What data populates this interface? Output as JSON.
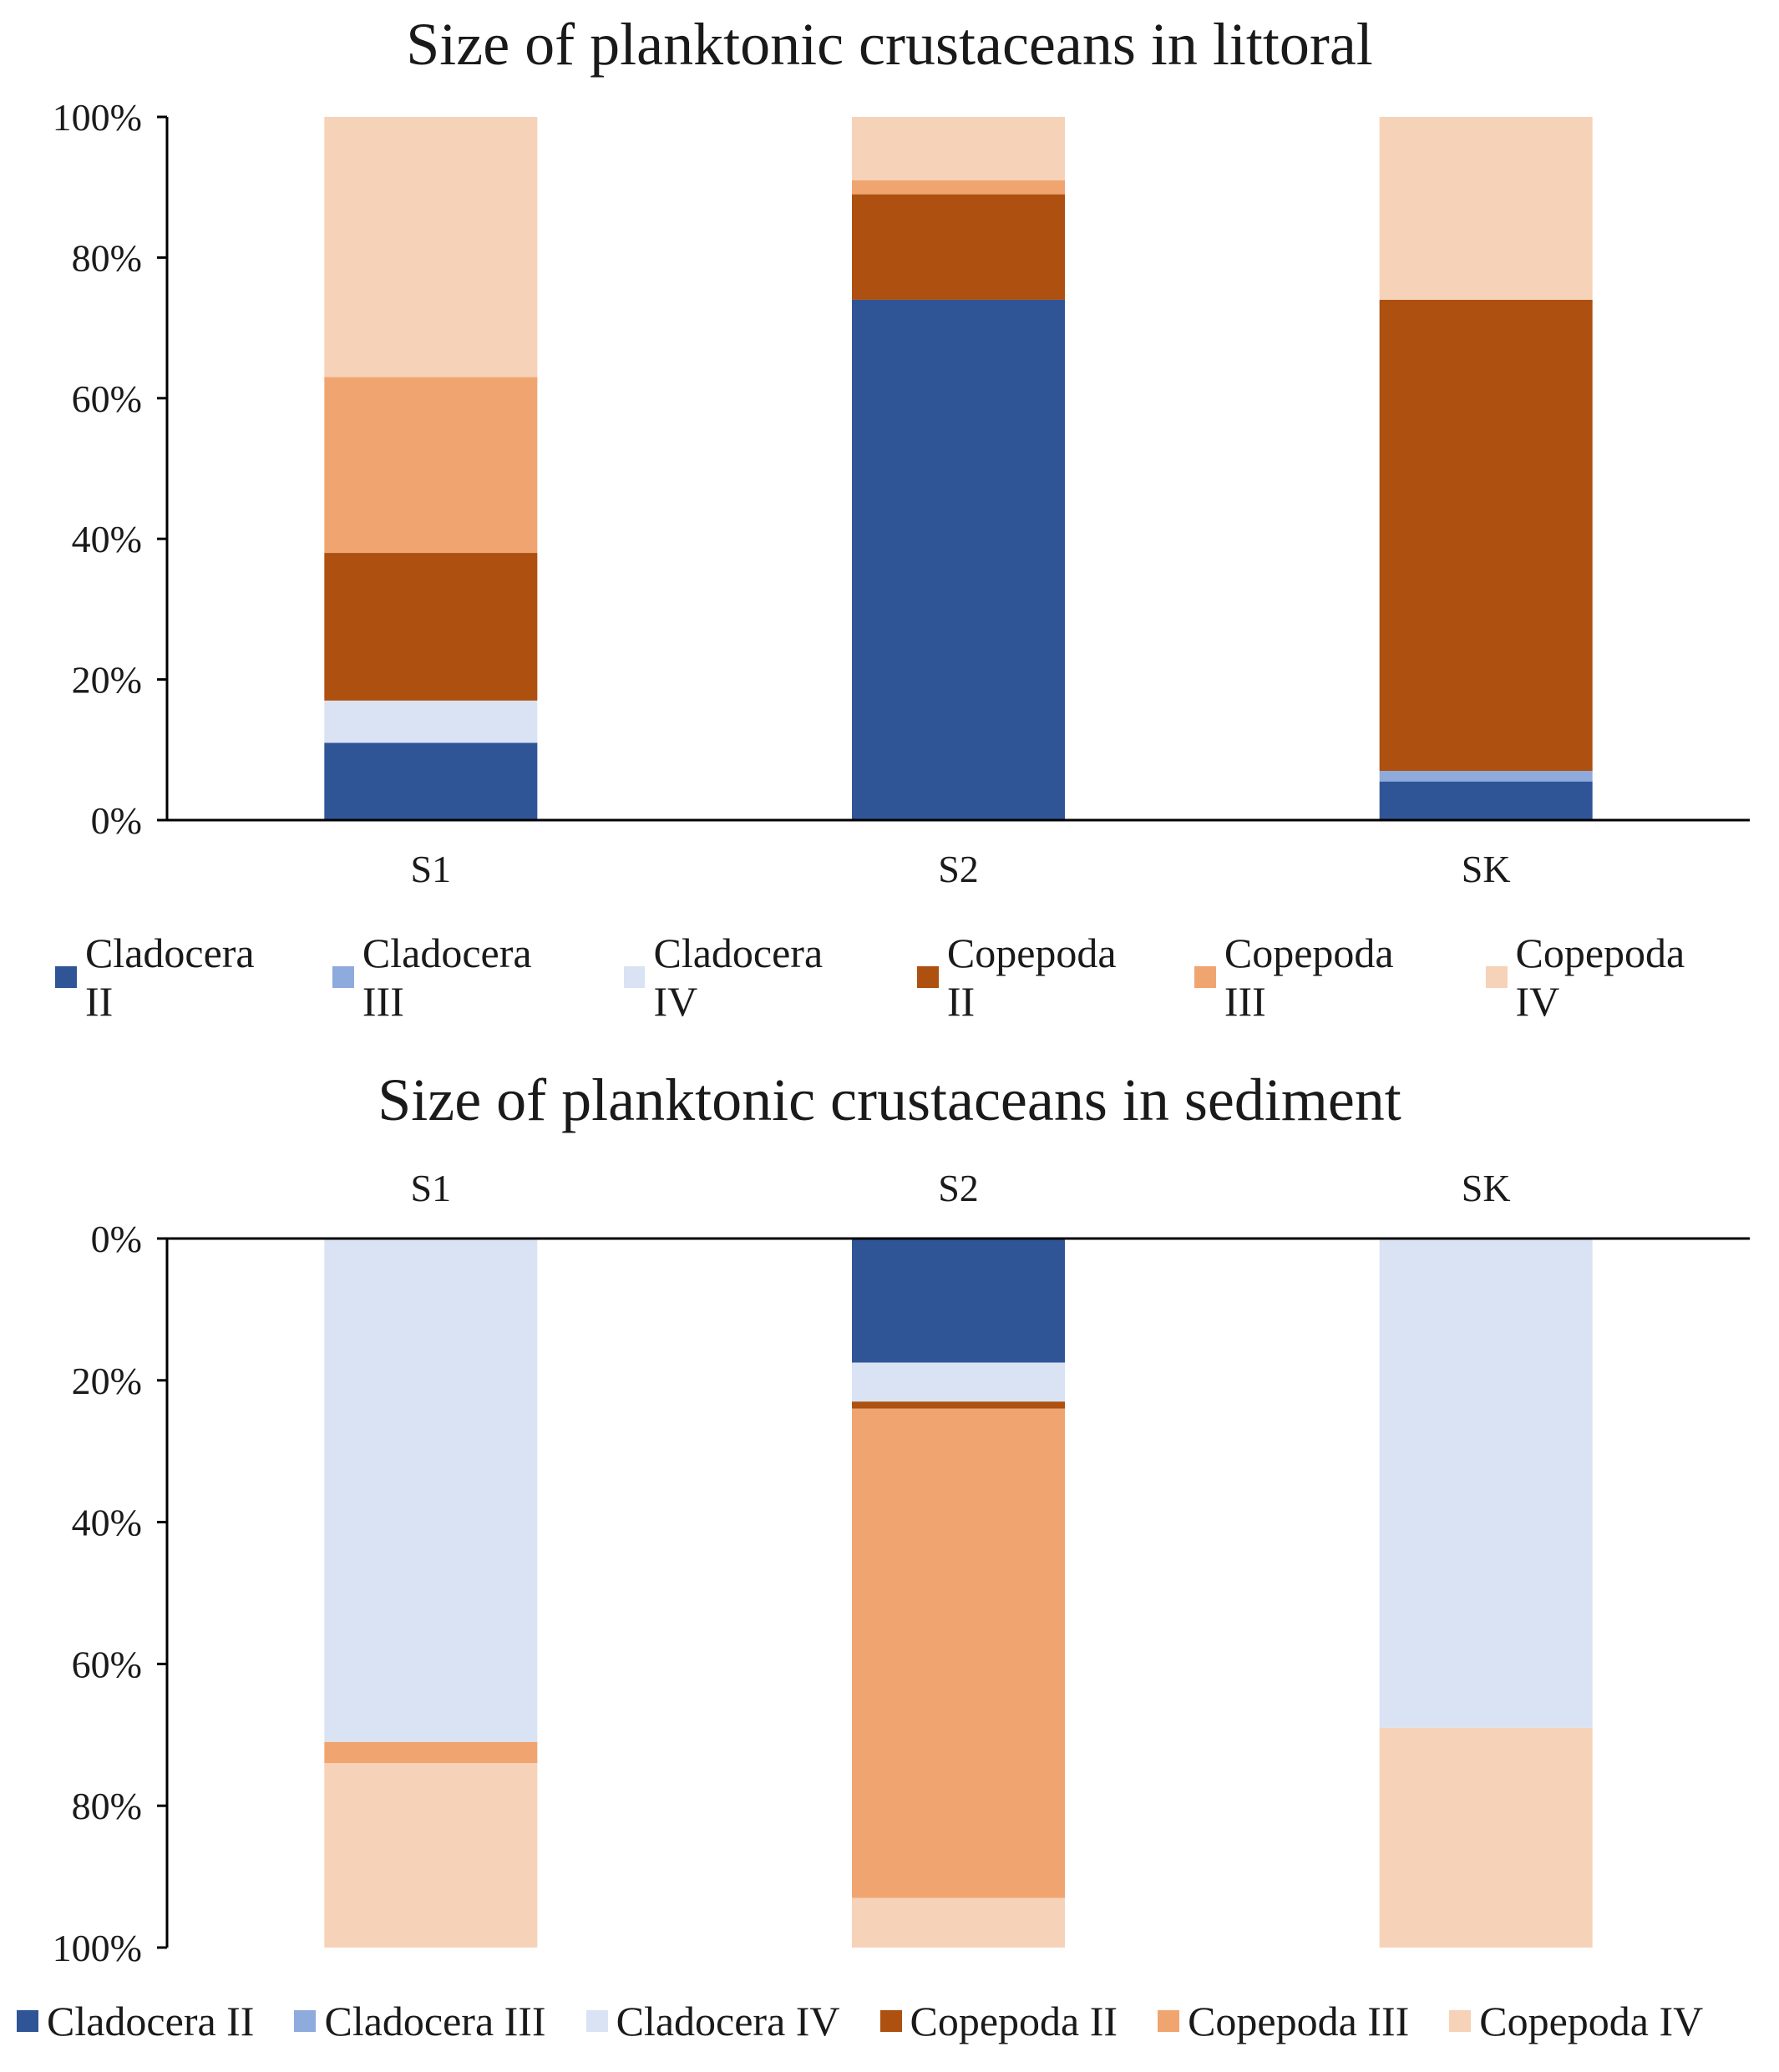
{
  "chart_data": [
    {
      "type": "bar",
      "stacked": true,
      "normalized": true,
      "orientation": "vertical",
      "direction": "up",
      "title": "Size of planktonic crustaceans in littoral",
      "xlabel": "",
      "ylabel": "",
      "ylim": [
        0,
        100
      ],
      "yticks": [
        "0%",
        "20%",
        "40%",
        "60%",
        "80%",
        "100%"
      ],
      "categories": [
        "S1",
        "S2",
        "SK"
      ],
      "series": [
        {
          "name": "Cladocera II",
          "color": "#2f5597",
          "values": [
            11,
            74,
            5.5
          ]
        },
        {
          "name": "Cladocera III",
          "color": "#8faadc",
          "values": [
            0,
            0,
            1.5
          ]
        },
        {
          "name": "Cladocera IV",
          "color": "#dae3f3",
          "values": [
            6,
            0,
            0
          ]
        },
        {
          "name": "Copepoda II",
          "color": "#ad5010",
          "values": [
            21,
            15,
            67
          ]
        },
        {
          "name": "Copepoda III",
          "color": "#f0a570",
          "values": [
            25,
            2,
            0
          ]
        },
        {
          "name": "Copepoda IV",
          "color": "#f6d2b8",
          "values": [
            37,
            9,
            26
          ]
        }
      ],
      "legend_position": "bottom"
    },
    {
      "type": "bar",
      "stacked": true,
      "normalized": true,
      "orientation": "vertical",
      "direction": "down",
      "title": "Size of planktonic crustaceans in sediment",
      "xlabel": "",
      "ylabel": "",
      "ylim": [
        0,
        100
      ],
      "yticks": [
        "0%",
        "20%",
        "40%",
        "60%",
        "80%",
        "100%"
      ],
      "categories": [
        "S1",
        "S2",
        "SK"
      ],
      "series": [
        {
          "name": "Cladocera II",
          "color": "#2f5597",
          "values": [
            0,
            17.5,
            0
          ]
        },
        {
          "name": "Cladocera III",
          "color": "#8faadc",
          "values": [
            0,
            0,
            0
          ]
        },
        {
          "name": "Cladocera IV",
          "color": "#dae3f3",
          "values": [
            71,
            5.5,
            69
          ]
        },
        {
          "name": "Copepoda II",
          "color": "#ad5010",
          "values": [
            0,
            1,
            0
          ]
        },
        {
          "name": "Copepoda III",
          "color": "#f0a570",
          "values": [
            3,
            69,
            0
          ]
        },
        {
          "name": "Copepoda IV",
          "color": "#f6d2b8",
          "values": [
            26,
            7,
            31
          ]
        }
      ],
      "legend_position": "bottom"
    }
  ]
}
